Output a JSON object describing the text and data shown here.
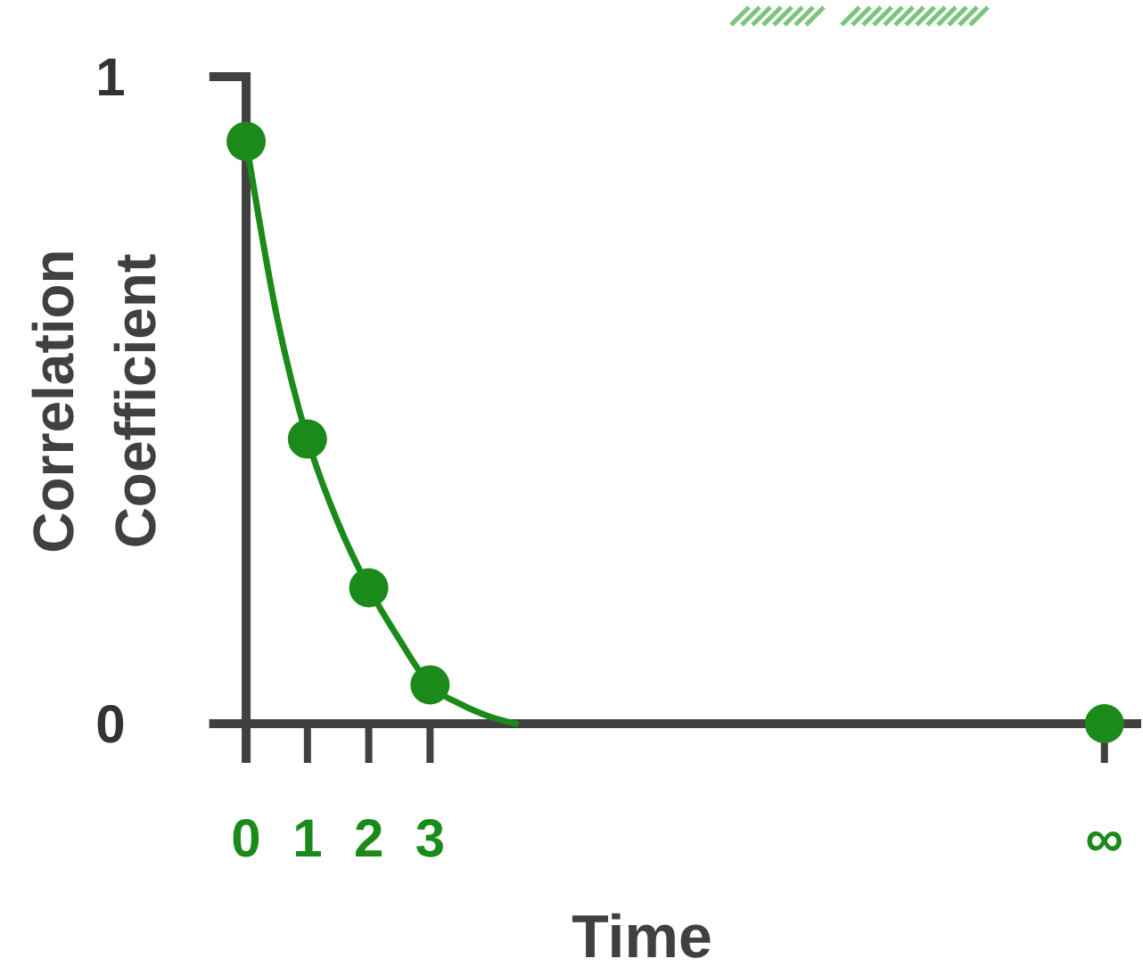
{
  "chart_data": {
    "type": "scatter",
    "xlabel": "Time",
    "ylabel": "Correlation Coefficient",
    "xlim": [
      -0.6,
      14.6
    ],
    "ylim": [
      0,
      1
    ],
    "xticks": [
      0,
      1,
      2,
      3,
      {
        "value": 14,
        "label": "∞"
      }
    ],
    "yticks": [
      0,
      1
    ],
    "grid": false,
    "line_style": "solid",
    "series": [
      {
        "type": "line",
        "marker": "none",
        "color": "#1a8a1a",
        "x": [
          0,
          0.5,
          1,
          1.5,
          2,
          2.5,
          3,
          3.5,
          4,
          4.4
        ],
        "values": [
          0.9,
          0.63,
          0.44,
          0.31,
          0.21,
          0.13,
          0.06,
          0.03,
          0.01,
          0
        ]
      },
      {
        "marker": "circle",
        "color": "#1a8a1a",
        "x": [
          0,
          1,
          2,
          3,
          14
        ],
        "values": [
          0.9,
          0.44,
          0.21,
          0.06,
          0
        ]
      }
    ]
  }
}
